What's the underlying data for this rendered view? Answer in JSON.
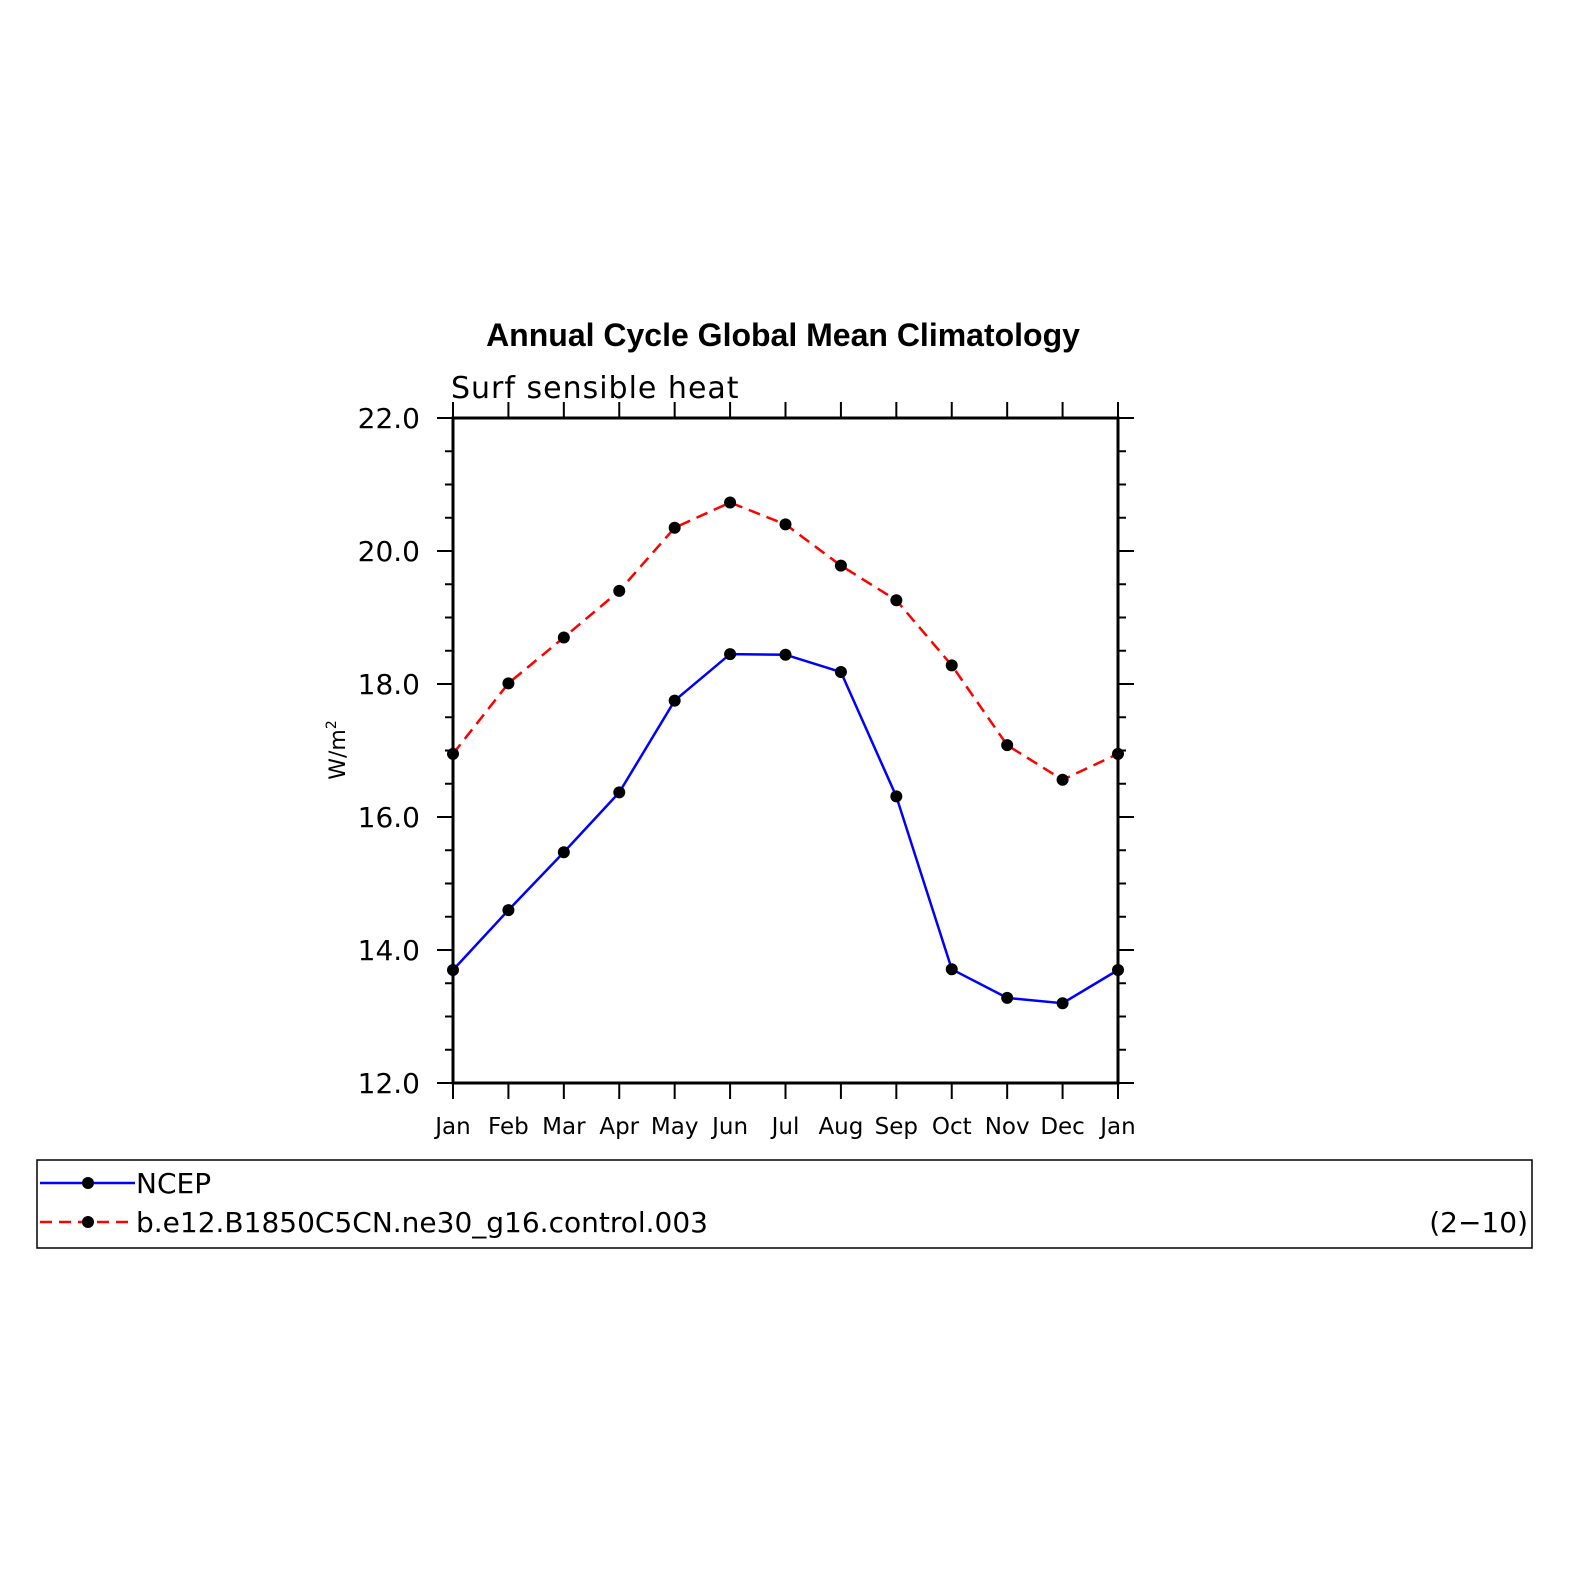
{
  "chart_data": {
    "type": "line",
    "title": "Annual Cycle Global Mean Climatology",
    "subtitle": "Surf sensible heat",
    "ylabel": "W/m",
    "ylabel_superscript": "2",
    "xlabel": "",
    "categories": [
      "Jan",
      "Feb",
      "Mar",
      "Apr",
      "May",
      "Jun",
      "Jul",
      "Aug",
      "Sep",
      "Oct",
      "Nov",
      "Dec",
      "Jan"
    ],
    "ylim": [
      12.0,
      22.0
    ],
    "yticks": [
      "12.0",
      "14.0",
      "16.0",
      "18.0",
      "20.0",
      "22.0"
    ],
    "grid": false,
    "series": [
      {
        "name": "NCEP",
        "color": "#0000ff",
        "style": "solid",
        "values": [
          13.7,
          14.6,
          15.47,
          16.37,
          17.75,
          18.45,
          18.44,
          18.18,
          16.31,
          13.71,
          13.28,
          13.2,
          13.7
        ]
      },
      {
        "name": "b.e12.B1850C5CN.ne30_g16.control.003",
        "color": "#ff0000",
        "style": "dashed",
        "values": [
          16.95,
          18.01,
          18.7,
          19.4,
          20.35,
          20.73,
          20.4,
          19.78,
          19.26,
          18.28,
          17.08,
          16.56,
          16.95
        ]
      }
    ],
    "legend_position": "bottom",
    "legend_note": "(2−10)",
    "marker_color": "#000000"
  }
}
